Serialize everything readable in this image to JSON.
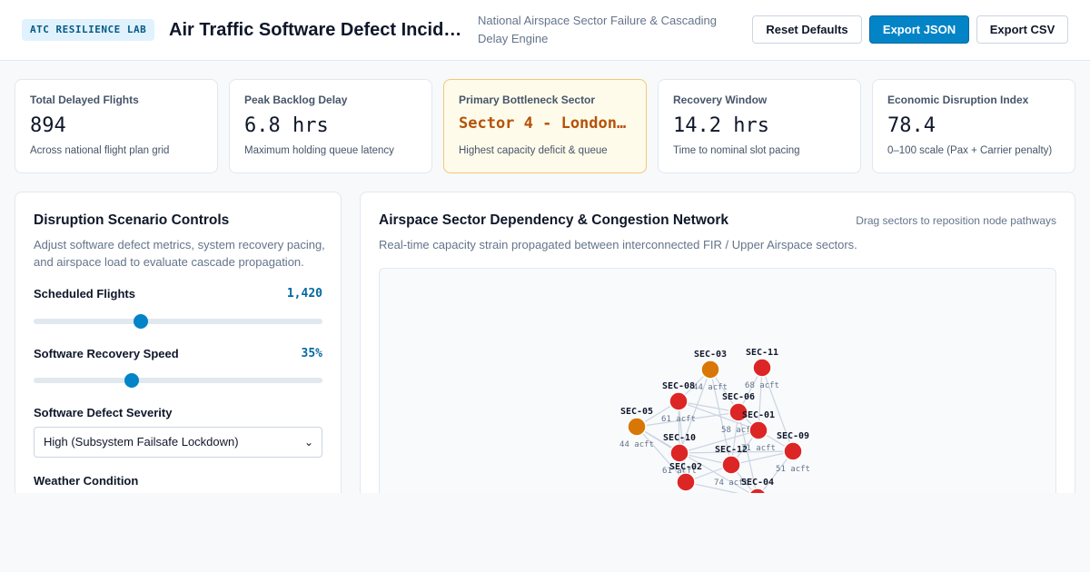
{
  "header": {
    "badge": "ATC RESILIENCE LAB",
    "title": "Air Traffic Software Defect Incident…",
    "subtitle": "National Airspace Sector Failure & Cascading Delay Engine",
    "buttons": {
      "reset": "Reset Defaults",
      "export_json": "Export JSON",
      "export_csv": "Export CSV"
    }
  },
  "kpis": [
    {
      "label": "Total Delayed Flights",
      "value": "894",
      "note": "Across national flight plan grid"
    },
    {
      "label": "Peak Backlog Delay",
      "value": "6.8 hrs",
      "note": "Maximum holding queue latency"
    },
    {
      "label": "Primary Bottleneck Sector",
      "value": "Sector 4 - London…",
      "note": "Highest capacity deficit & queue"
    },
    {
      "label": "Recovery Window",
      "value": "14.2 hrs",
      "note": "Time to nominal slot pacing"
    },
    {
      "label": "Economic Disruption Index",
      "value": "78.4",
      "note": "0–100 scale (Pax + Carrier penalty)"
    }
  ],
  "controls": {
    "title": "Disruption Scenario Controls",
    "description": "Adjust software defect metrics, system recovery pacing, and airspace load to evaluate cascade propagation.",
    "scheduled_flights": {
      "label": "Scheduled Flights",
      "value": "1,420",
      "level": 0.37
    },
    "recovery_speed": {
      "label": "Software Recovery Speed",
      "value": "35%",
      "level": 0.34
    },
    "defect_severity": {
      "label": "Software Defect Severity",
      "selected": "High (Subsystem Failsafe Lockdown)"
    },
    "weather": {
      "label": "Weather Condition"
    }
  },
  "network": {
    "title": "Airspace Sector Dependency & Congestion Network",
    "hint": "Drag sectors to reposition node pathways",
    "description": "Real-time capacity strain propagated between interconnected FIR / Upper Airspace sectors.",
    "colors": {
      "critical": "#dc2626",
      "warning": "#d97706",
      "edge": "#cbd5e1"
    },
    "nodes": [
      {
        "id": "SEC-03",
        "load": "44 acft",
        "status": "warning"
      },
      {
        "id": "SEC-11",
        "load": "68 acft",
        "status": "critical"
      },
      {
        "id": "SEC-08",
        "load": "61 acft",
        "status": "critical"
      },
      {
        "id": "SEC-06",
        "load": "58 acft",
        "status": "critical"
      },
      {
        "id": "SEC-05",
        "load": "44 acft",
        "status": "warning"
      },
      {
        "id": "SEC-01",
        "load": "71 acft",
        "status": "critical"
      },
      {
        "id": "SEC-09",
        "load": "51 acft",
        "status": "critical"
      },
      {
        "id": "SEC-10",
        "load": "61 acft",
        "status": "critical"
      },
      {
        "id": "SEC-12",
        "load": "74 acft",
        "status": "critical"
      },
      {
        "id": "SEC-02",
        "load": "",
        "status": "critical"
      },
      {
        "id": "SEC-04",
        "load": "",
        "status": "critical"
      }
    ]
  }
}
